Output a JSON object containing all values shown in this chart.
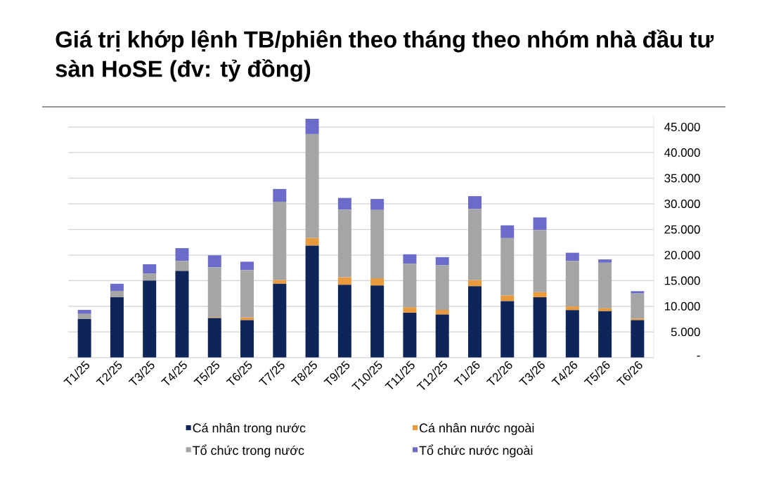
{
  "chart_data": {
    "type": "bar",
    "stacked": true,
    "title": "Giá trị khớp lệnh TB/phiên theo tháng theo nhóm nhà đầu tư sàn HoSE (đv: tỷ đồng)",
    "categories": [
      "T1/25",
      "T2/25",
      "T3/25",
      "T4/25",
      "T5/25",
      "T6/25",
      "T7/25",
      "T8/25",
      "T9/25",
      "T10/25",
      "T11/25",
      "T12/25",
      "T1/26",
      "T2/26",
      "T3/26",
      "T4/26",
      "T5/26",
      "T6/26"
    ],
    "series": [
      {
        "name": "Cá nhân trong nước",
        "color": "#0d2559",
        "values": [
          7500,
          11750,
          15000,
          16900,
          7700,
          7300,
          14400,
          21850,
          14200,
          14050,
          8750,
          8400,
          13900,
          11000,
          11750,
          9250,
          9050,
          7300
        ]
      },
      {
        "name": "Cá nhân nước ngoài",
        "color": "#e89a3c",
        "values": [
          0,
          0,
          0,
          0,
          150,
          500,
          700,
          1450,
          1450,
          1400,
          1050,
          900,
          1200,
          1100,
          1000,
          700,
          550,
          300
        ]
      },
      {
        "name": "Tổ chức trong nước",
        "color": "#a5a5a5",
        "values": [
          1000,
          1250,
          1400,
          1950,
          9750,
          9250,
          15300,
          20300,
          13200,
          13350,
          8500,
          8700,
          13900,
          11200,
          12150,
          8900,
          8900,
          4900
        ]
      },
      {
        "name": "Tổ chức nước ngoài",
        "color": "#6b6bc9",
        "values": [
          800,
          1400,
          1800,
          2500,
          2350,
          1650,
          2500,
          3000,
          2300,
          2150,
          1850,
          1600,
          2500,
          2500,
          2450,
          1600,
          650,
          450
        ]
      }
    ],
    "ylim": [
      0,
      47000
    ],
    "yticks": [
      {
        "value": 0,
        "label": "-"
      },
      {
        "value": 5000,
        "label": "5.000"
      },
      {
        "value": 10000,
        "label": "10.000"
      },
      {
        "value": 15000,
        "label": "15.000"
      },
      {
        "value": 20000,
        "label": "20.000"
      },
      {
        "value": 25000,
        "label": "25.000"
      },
      {
        "value": 30000,
        "label": "30.000"
      },
      {
        "value": 35000,
        "label": "35.000"
      },
      {
        "value": 40000,
        "label": "40.000"
      },
      {
        "value": 45000,
        "label": "45.000"
      }
    ],
    "grid": "y",
    "legend": "bottom"
  }
}
